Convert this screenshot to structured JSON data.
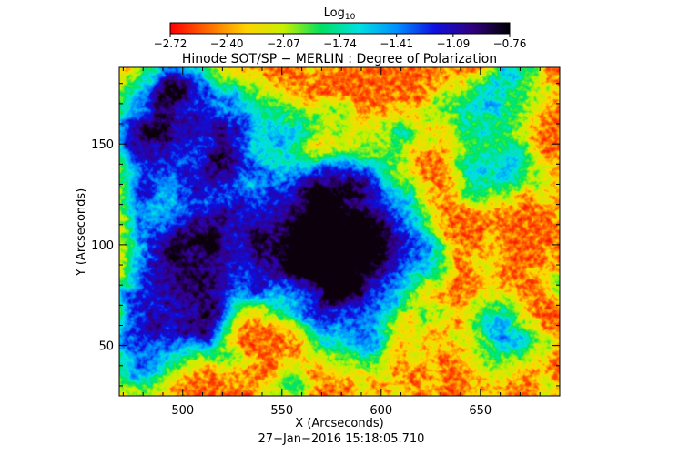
{
  "chart_data": {
    "type": "heatmap",
    "title": "Hinode SOT/SP − MERLIN : Degree of Polarization",
    "xlabel": "X (Arcseconds)",
    "ylabel": "Y (Arcseconds)",
    "xlim": [
      468,
      690
    ],
    "ylim": [
      25,
      188
    ],
    "x_ticks": [
      500,
      550,
      600,
      650
    ],
    "y_ticks": [
      50,
      100,
      150
    ],
    "timestamp": "27−Jan−2016 15:18:05.710",
    "colorbar": {
      "label_base": "Log",
      "label_sub": "10",
      "range": [
        -2.72,
        -0.76
      ],
      "ticks": [
        "−2.72",
        "−2.40",
        "−2.07",
        "−1.74",
        "−1.41",
        "−1.09",
        "−0.76"
      ],
      "colormap": "rainbow",
      "stops": [
        "#ff0000",
        "#ff6a00",
        "#ffd200",
        "#c8f000",
        "#00e060",
        "#00e0e0",
        "#0090ff",
        "#1010e0",
        "#300080",
        "#000000"
      ]
    },
    "features": {
      "sunspot_center": [
        578,
        100
      ],
      "umbra_value": -0.76,
      "quiet_sun_value": -2.72,
      "plage_region_center": [
        505,
        130
      ]
    }
  }
}
